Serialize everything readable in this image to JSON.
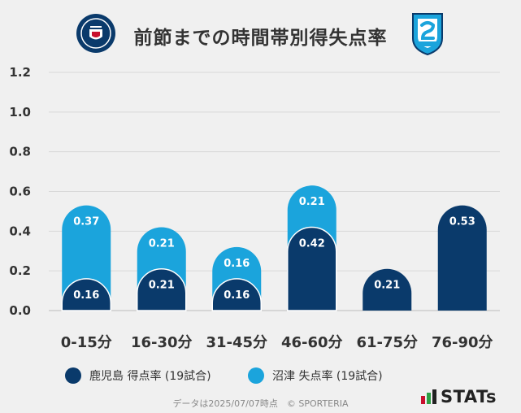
{
  "title": "前節までの時間帯別得失点率",
  "logos": {
    "home_alt": "KAGOSHIMA UNITED FC",
    "away_alt": "azul claro 1990"
  },
  "colors": {
    "home": "#0a3a6b",
    "away": "#1ba4dc",
    "grid": "#d8d8d8",
    "background": "#f0f0f0"
  },
  "chart_data": {
    "type": "bar",
    "stacked": true,
    "categories": [
      "0-15分",
      "16-30分",
      "31-45分",
      "46-60分",
      "61-75分",
      "76-90分"
    ],
    "series": [
      {
        "name": "鹿児島 得点率 (19試合)",
        "values": [
          0.16,
          0.21,
          0.16,
          0.42,
          0.21,
          0.53
        ]
      },
      {
        "name": "沼津 失点率 (19試合)",
        "values": [
          0.37,
          0.21,
          0.16,
          0.21,
          0.0,
          0.0
        ]
      }
    ],
    "y_ticks": [
      "0.0",
      "0.2",
      "0.4",
      "0.6",
      "0.8",
      "1.0",
      "1.2"
    ],
    "ylim": [
      0,
      1.2
    ],
    "grid": true,
    "legend_position": "bottom"
  },
  "footer": "データは2025/07/07時点　© SPORTERIA",
  "brand": "STATs"
}
